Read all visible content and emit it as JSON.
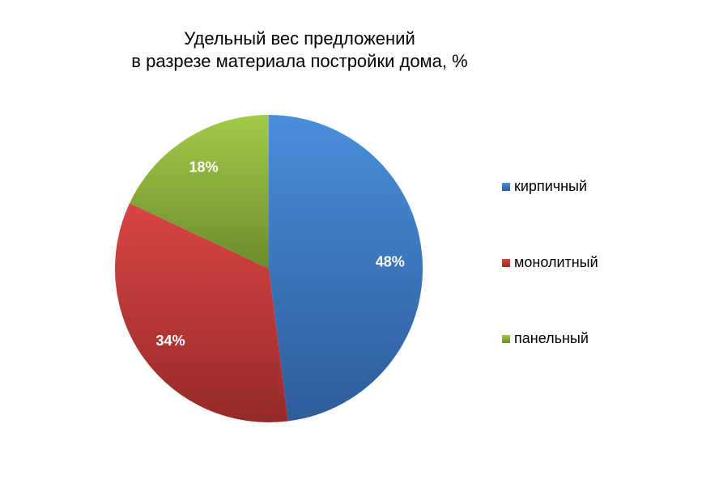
{
  "chart_data": {
    "type": "pie",
    "title_line1": "Удельный вес предложений",
    "title_line2": "в разрезе материала постройки дома, %",
    "categories": [
      "кирпичный",
      "монолитный",
      "панельный"
    ],
    "values": [
      48,
      34,
      18
    ],
    "data_labels": [
      "48%",
      "34%",
      "18%"
    ],
    "colors": [
      "#3f7bc9",
      "#c23b38",
      "#8db63e"
    ],
    "legend_position": "right"
  }
}
